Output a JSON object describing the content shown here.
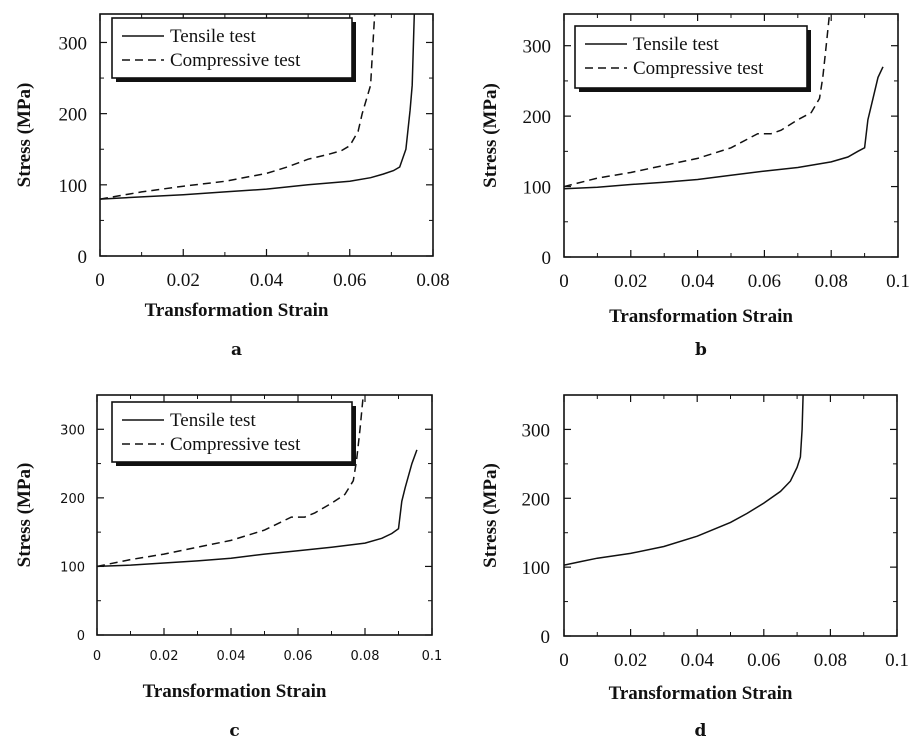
{
  "chart_data": [
    {
      "panel": "a",
      "type": "line",
      "xlabel": "Transformation Strain",
      "ylabel": "Stress (MPa)",
      "xlim": [
        0,
        0.08
      ],
      "ylim": [
        0,
        340
      ],
      "xticks": [
        0,
        0.02,
        0.04,
        0.06,
        0.08
      ],
      "xtick_labels": [
        "0",
        "0.02",
        "0.04",
        "0.06",
        "0.08"
      ],
      "yticks": [
        0,
        100,
        200,
        300
      ],
      "ytick_labels": [
        "0",
        "100",
        "200",
        "300"
      ],
      "legend": "top-left",
      "series": [
        {
          "name": "Tensile test",
          "style": "solid",
          "x": [
            0,
            0.01,
            0.02,
            0.03,
            0.04,
            0.05,
            0.06,
            0.065,
            0.068,
            0.0705,
            0.072,
            0.0735,
            0.0745,
            0.075,
            0.0755
          ],
          "y": [
            80,
            83,
            86,
            90,
            94,
            100,
            105,
            110,
            115,
            120,
            125,
            150,
            205,
            240,
            340
          ]
        },
        {
          "name": "Compressive test",
          "style": "dashed",
          "x": [
            0,
            0.01,
            0.02,
            0.03,
            0.04,
            0.045,
            0.05,
            0.055,
            0.058,
            0.06,
            0.062,
            0.063,
            0.065,
            0.0655,
            0.066
          ],
          "y": [
            80,
            90,
            98,
            105,
            116,
            125,
            136,
            143,
            148,
            155,
            175,
            200,
            240,
            290,
            340
          ]
        }
      ]
    },
    {
      "panel": "b",
      "type": "line",
      "xlabel": "Transformation Strain",
      "ylabel": "Stress (MPa)",
      "xlim": [
        0,
        0.1
      ],
      "ylim": [
        0,
        345
      ],
      "xticks": [
        0,
        0.02,
        0.04,
        0.06,
        0.08,
        0.1
      ],
      "xtick_labels": [
        "0",
        "0.02",
        "0.04",
        "0.06",
        "0.08",
        "0.1"
      ],
      "yticks": [
        0,
        100,
        200,
        300
      ],
      "ytick_labels": [
        "0",
        "100",
        "200",
        "300"
      ],
      "legend": "top-left",
      "series": [
        {
          "name": "Tensile test",
          "style": "solid",
          "x": [
            0,
            0.01,
            0.02,
            0.03,
            0.04,
            0.05,
            0.06,
            0.07,
            0.08,
            0.085,
            0.088,
            0.09,
            0.091,
            0.092,
            0.094,
            0.0955
          ],
          "y": [
            97,
            99,
            103,
            106,
            110,
            116,
            122,
            127,
            135,
            142,
            150,
            155,
            195,
            215,
            255,
            270
          ]
        },
        {
          "name": "Compressive test",
          "style": "dashed",
          "x": [
            0,
            0.01,
            0.02,
            0.03,
            0.04,
            0.05,
            0.058,
            0.062,
            0.065,
            0.07,
            0.074,
            0.0765,
            0.0775,
            0.0785,
            0.0795
          ],
          "y": [
            100,
            112,
            120,
            130,
            140,
            155,
            175,
            175,
            180,
            195,
            205,
            225,
            255,
            300,
            345
          ]
        }
      ]
    },
    {
      "panel": "c",
      "type": "line",
      "xlabel": "Transformation Strain",
      "ylabel": "Stress (MPa)",
      "xlim": [
        0,
        0.1
      ],
      "ylim": [
        0,
        350
      ],
      "xticks": [
        0,
        0.02,
        0.04,
        0.06,
        0.08,
        0.1
      ],
      "xtick_labels": [
        "0",
        "0.02",
        "0.04",
        "0.06",
        "0.08",
        "0.1"
      ],
      "yticks": [
        0,
        100,
        200,
        300
      ],
      "ytick_labels": [
        "0",
        "100",
        "200",
        "300"
      ],
      "legend": "top-left",
      "series": [
        {
          "name": "Tensile test",
          "style": "solid",
          "x": [
            0,
            0.01,
            0.02,
            0.03,
            0.04,
            0.05,
            0.06,
            0.07,
            0.08,
            0.085,
            0.088,
            0.09,
            0.091,
            0.092,
            0.094,
            0.0955
          ],
          "y": [
            100,
            102,
            105,
            108,
            112,
            118,
            123,
            128,
            134,
            141,
            148,
            155,
            195,
            215,
            250,
            270
          ]
        },
        {
          "name": "Compressive test",
          "style": "dashed",
          "x": [
            0,
            0.01,
            0.02,
            0.03,
            0.04,
            0.05,
            0.058,
            0.062,
            0.065,
            0.07,
            0.074,
            0.0765,
            0.0775,
            0.0785,
            0.0795
          ],
          "y": [
            100,
            110,
            118,
            128,
            138,
            153,
            172,
            172,
            178,
            192,
            205,
            225,
            255,
            300,
            350
          ]
        }
      ]
    },
    {
      "panel": "d",
      "type": "line",
      "xlabel": "Transformation Strain",
      "ylabel": "Stress (MPa)",
      "xlim": [
        0,
        0.1
      ],
      "ylim": [
        0,
        350
      ],
      "xticks": [
        0,
        0.02,
        0.04,
        0.06,
        0.08,
        0.1
      ],
      "xtick_labels": [
        "0",
        "0.02",
        "0.04",
        "0.06",
        "0.08",
        "0.1"
      ],
      "yticks": [
        0,
        100,
        200,
        300
      ],
      "ytick_labels": [
        "0",
        "100",
        "200",
        "300"
      ],
      "legend": "none",
      "series": [
        {
          "name": "",
          "style": "solid",
          "x": [
            0,
            0.005,
            0.01,
            0.02,
            0.03,
            0.04,
            0.05,
            0.055,
            0.06,
            0.065,
            0.068,
            0.07,
            0.071,
            0.0715,
            0.0718
          ],
          "y": [
            103,
            108,
            113,
            120,
            130,
            145,
            165,
            178,
            193,
            210,
            225,
            245,
            260,
            300,
            350
          ]
        }
      ]
    }
  ]
}
